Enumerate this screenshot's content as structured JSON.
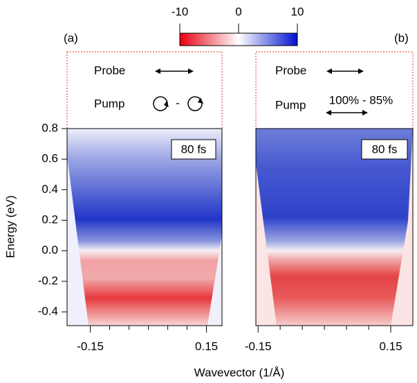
{
  "colorbar": {
    "lim": [
      -10,
      10
    ],
    "ticks": [
      -10,
      0,
      10
    ]
  },
  "xlabel": "Wavevector (1/Å)",
  "chart_data": [
    {
      "type": "heatmap",
      "panel_label": "(a)",
      "annotation": "80 fs",
      "probe": "Probe",
      "pump": "Pump",
      "pump_text": "-",
      "ylabel": "Energy (eV)",
      "xlim": [
        -0.21,
        0.19
      ],
      "xticks": [
        -0.15,
        0.15
      ],
      "xminor": [
        -0.1,
        -0.05,
        0,
        0.05,
        0.1
      ],
      "ylim": [
        -0.49,
        0.8
      ],
      "yticks": [
        0.8,
        0.6,
        0.4,
        0.2,
        {
          "value": 0,
          "label": "0.0"
        },
        -0.2,
        -0.4
      ]
    },
    {
      "type": "heatmap",
      "panel_label": "(b)",
      "annotation": "80 fs",
      "probe": "Probe",
      "pump": "Pump",
      "pump_text": "100% - 85%",
      "xlim": [
        -0.155,
        0.2
      ],
      "xticks": [
        -0.15,
        0.15
      ],
      "xminor": [
        -0.1,
        -0.05,
        0,
        0.05,
        0.1
      ],
      "ylim": [
        -0.49,
        0.8
      ]
    }
  ]
}
